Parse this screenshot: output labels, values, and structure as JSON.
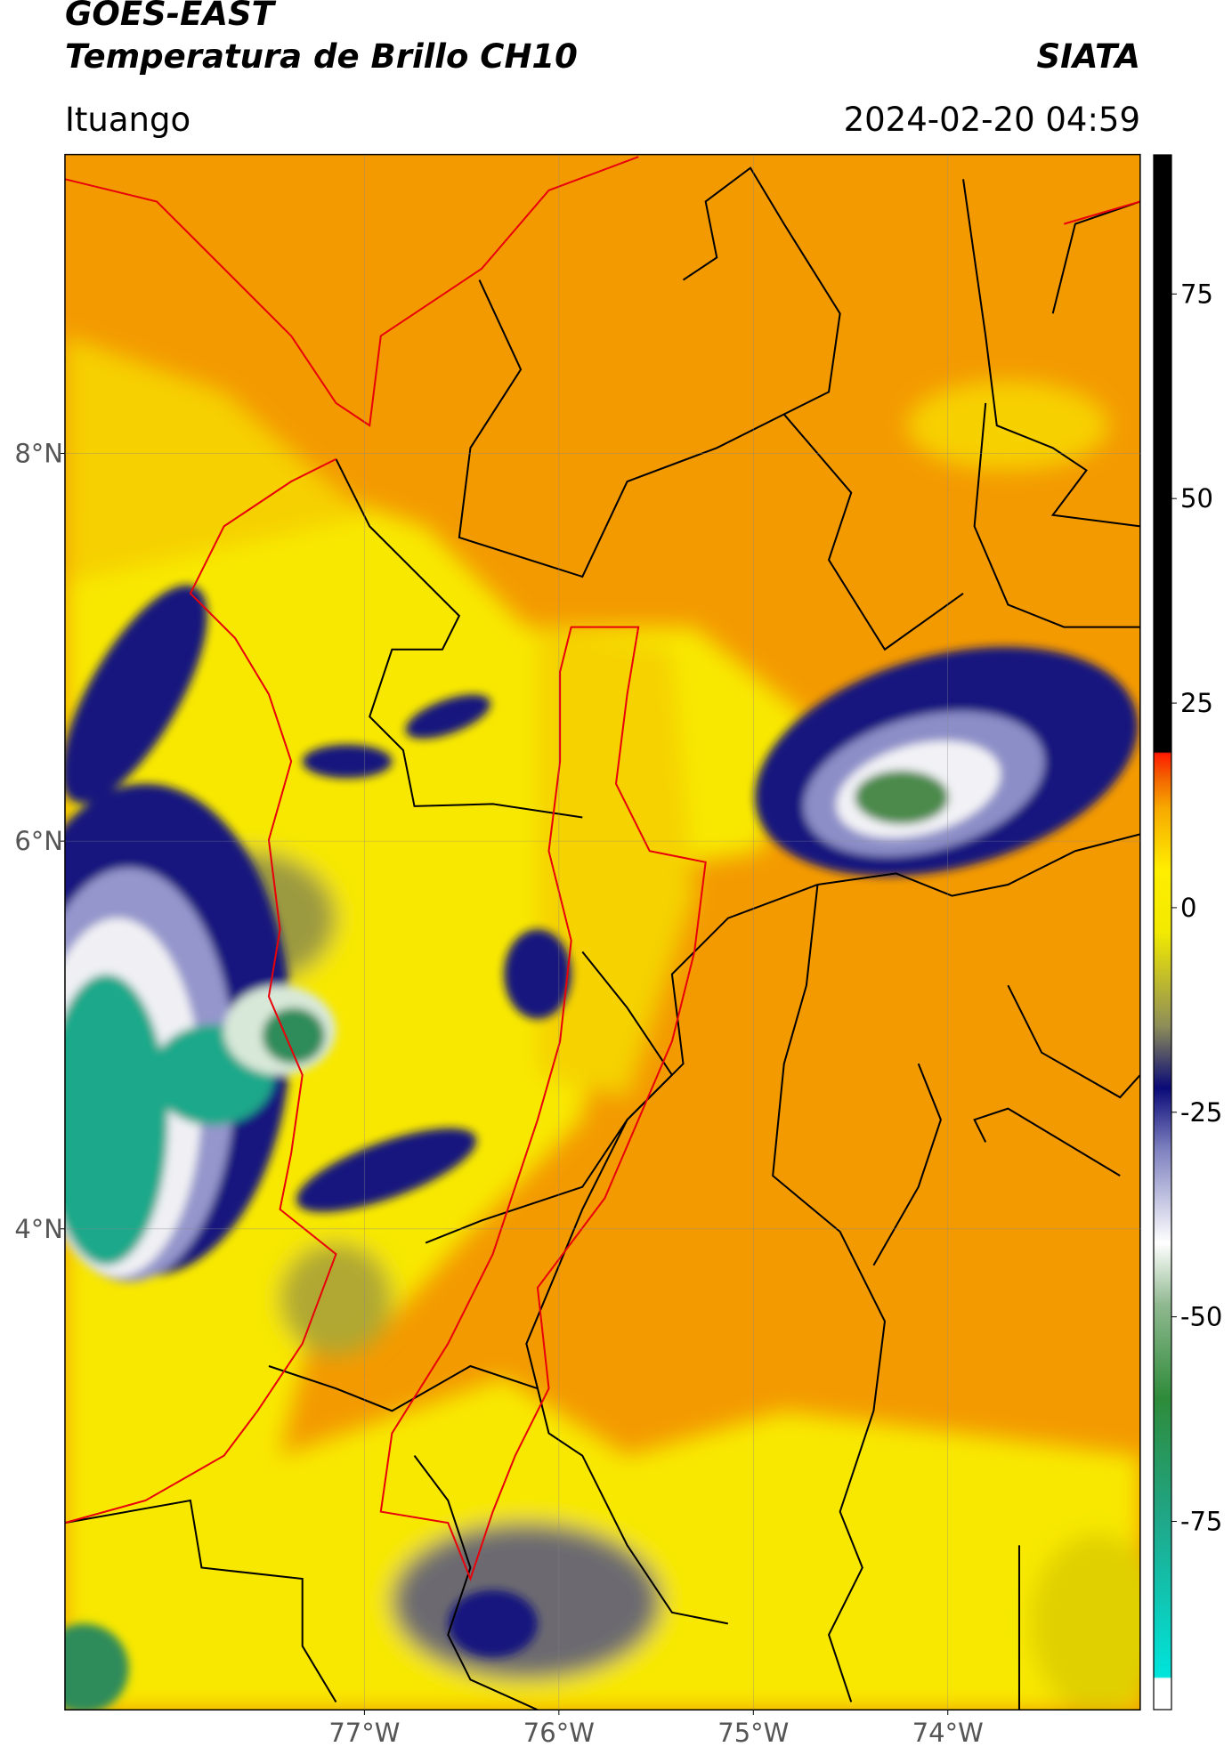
{
  "header": {
    "title": "GOES-EAST",
    "subtitle": "Temperatura de Brillo CH10",
    "brand": "SIATA",
    "location": "Ituango",
    "timestamp": "2024-02-20 04:59"
  },
  "map": {
    "xlim": [
      -78.54,
      -73.01
    ],
    "ylim": [
      1.52,
      9.54
    ],
    "xticks": [
      {
        "value": -77,
        "label": "77°W"
      },
      {
        "value": -76,
        "label": "76°W"
      },
      {
        "value": -75,
        "label": "75°W"
      },
      {
        "value": -74,
        "label": "74°W"
      }
    ],
    "yticks": [
      {
        "value": 8,
        "label": "8°N"
      },
      {
        "value": 6,
        "label": "6°N"
      },
      {
        "value": 4,
        "label": "4°N"
      }
    ],
    "grid": true
  },
  "colorbar": {
    "lim": [
      -98,
      92
    ],
    "ticks": [
      75,
      50,
      25,
      0,
      -25,
      -50,
      -75
    ]
  }
}
